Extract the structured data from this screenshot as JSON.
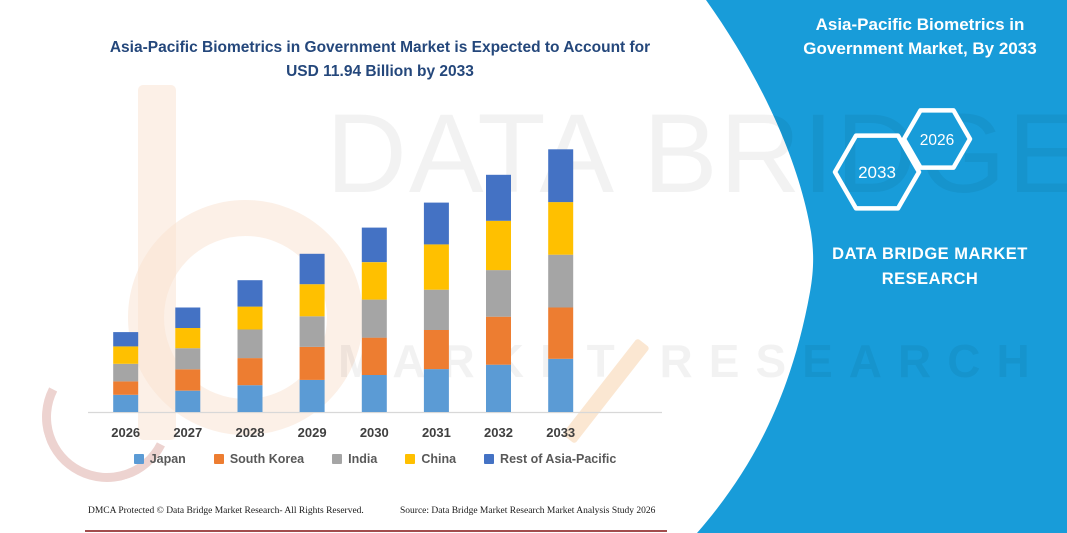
{
  "chart_data": {
    "type": "bar",
    "stacked": true,
    "title": "Asia-Pacific Biometrics in Government Market is Expected to Account for USD 11.94 Billion by 2033",
    "title_lines": [
      "Asia-Pacific Biometrics in Government Market is Expected to Account for",
      "USD 11.94 Billion by 2033"
    ],
    "unit": "USD Billion",
    "categories": [
      "2026",
      "2027",
      "2028",
      "2029",
      "2030",
      "2031",
      "2032",
      "2033"
    ],
    "series": [
      {
        "name": "Japan",
        "color": "#5B9BD5",
        "values": [
          0.78,
          0.97,
          1.22,
          1.46,
          1.68,
          1.95,
          2.15,
          2.42
        ]
      },
      {
        "name": "South Korea",
        "color": "#ED7D31",
        "values": [
          0.61,
          0.97,
          1.23,
          1.5,
          1.7,
          1.78,
          2.18,
          2.33
        ]
      },
      {
        "name": "India",
        "color": "#A5A5A5",
        "values": [
          0.8,
          0.96,
          1.3,
          1.39,
          1.73,
          1.83,
          2.12,
          2.4
        ]
      },
      {
        "name": "China",
        "color": "#FFC000",
        "values": [
          0.79,
          0.92,
          1.04,
          1.46,
          1.7,
          2.06,
          2.24,
          2.39
        ]
      },
      {
        "name": "Rest of Asia-Pacific",
        "color": "#4472C4",
        "values": [
          0.65,
          0.93,
          1.2,
          1.38,
          1.57,
          1.9,
          2.09,
          2.4
        ]
      }
    ],
    "xlabel": "",
    "ylabel": "",
    "ylim": [
      0,
      12.5
    ],
    "grid": false,
    "legend_position": "bottom"
  },
  "side_panel": {
    "title": "Asia-Pacific Biometrics in Government Market, By 2033",
    "hexagon_back_label": "2033",
    "hexagon_front_label": "2026",
    "brand_name": "DATA BRIDGE MARKET RESEARCH"
  },
  "watermark": {
    "big_text": "DATA BRIDGE",
    "spaced_text": "MARKET RESEARCH"
  },
  "footer": {
    "dmca": "DMCA Protected © Data Bridge Market Research-  All Rights Reserved.",
    "source": "Source: Data Bridge Market Research  Market Analysis Study 2026"
  },
  "colors": {
    "accent": "#189CD9",
    "title_navy": "#24477B",
    "axis_label": "#3F3F3F",
    "legend_text": "#595959",
    "axis_line": "#D8D8D8",
    "watermark": "rgba(0,0,0,0.05)"
  }
}
